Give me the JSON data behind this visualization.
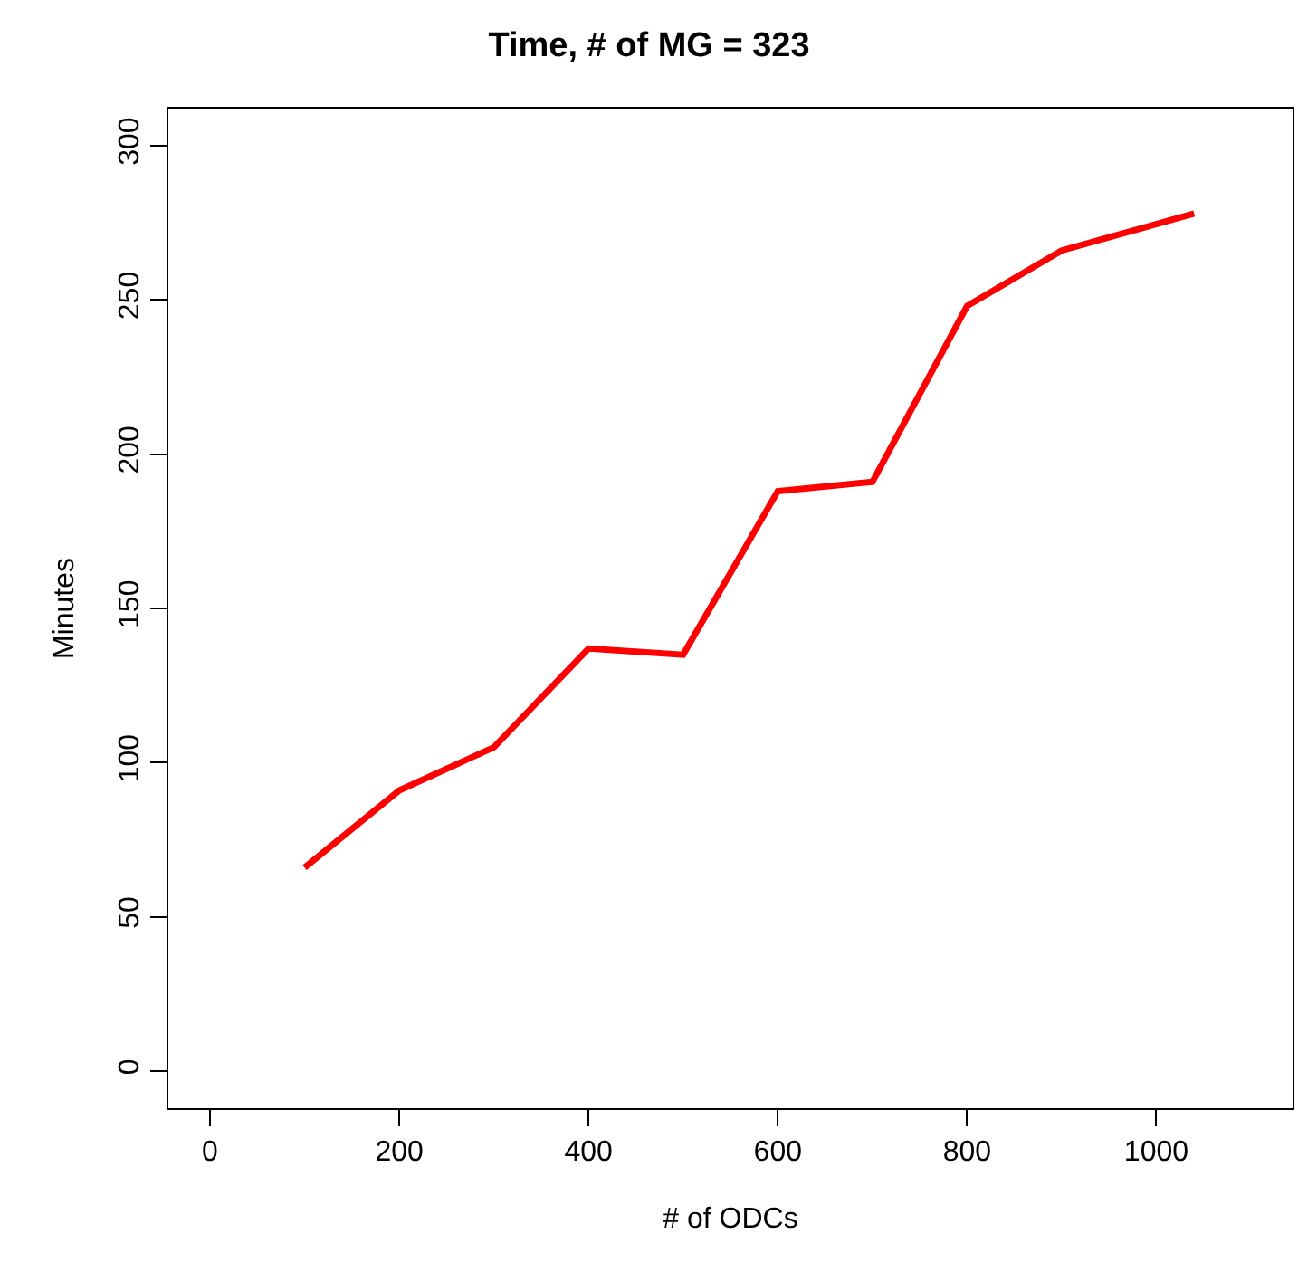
{
  "chart_data": {
    "type": "line",
    "title": "Time, # of MG = 323",
    "xlabel": "# of ODCs",
    "ylabel": "Minutes",
    "x": [
      100,
      200,
      300,
      400,
      500,
      600,
      700,
      800,
      900,
      1040
    ],
    "series": [
      {
        "color": "#ff0000",
        "values": [
          66,
          91,
          105,
          137,
          135,
          188,
          191,
          248,
          266,
          278
        ]
      }
    ],
    "xlim": [
      -44,
      1144
    ],
    "ylim": [
      -12,
      312
    ],
    "xticks": [
      0,
      200,
      400,
      600,
      800,
      1000
    ],
    "yticks": [
      0,
      50,
      100,
      150,
      200,
      250,
      300
    ],
    "grid": false,
    "marker": "none",
    "line_style": "solid"
  }
}
